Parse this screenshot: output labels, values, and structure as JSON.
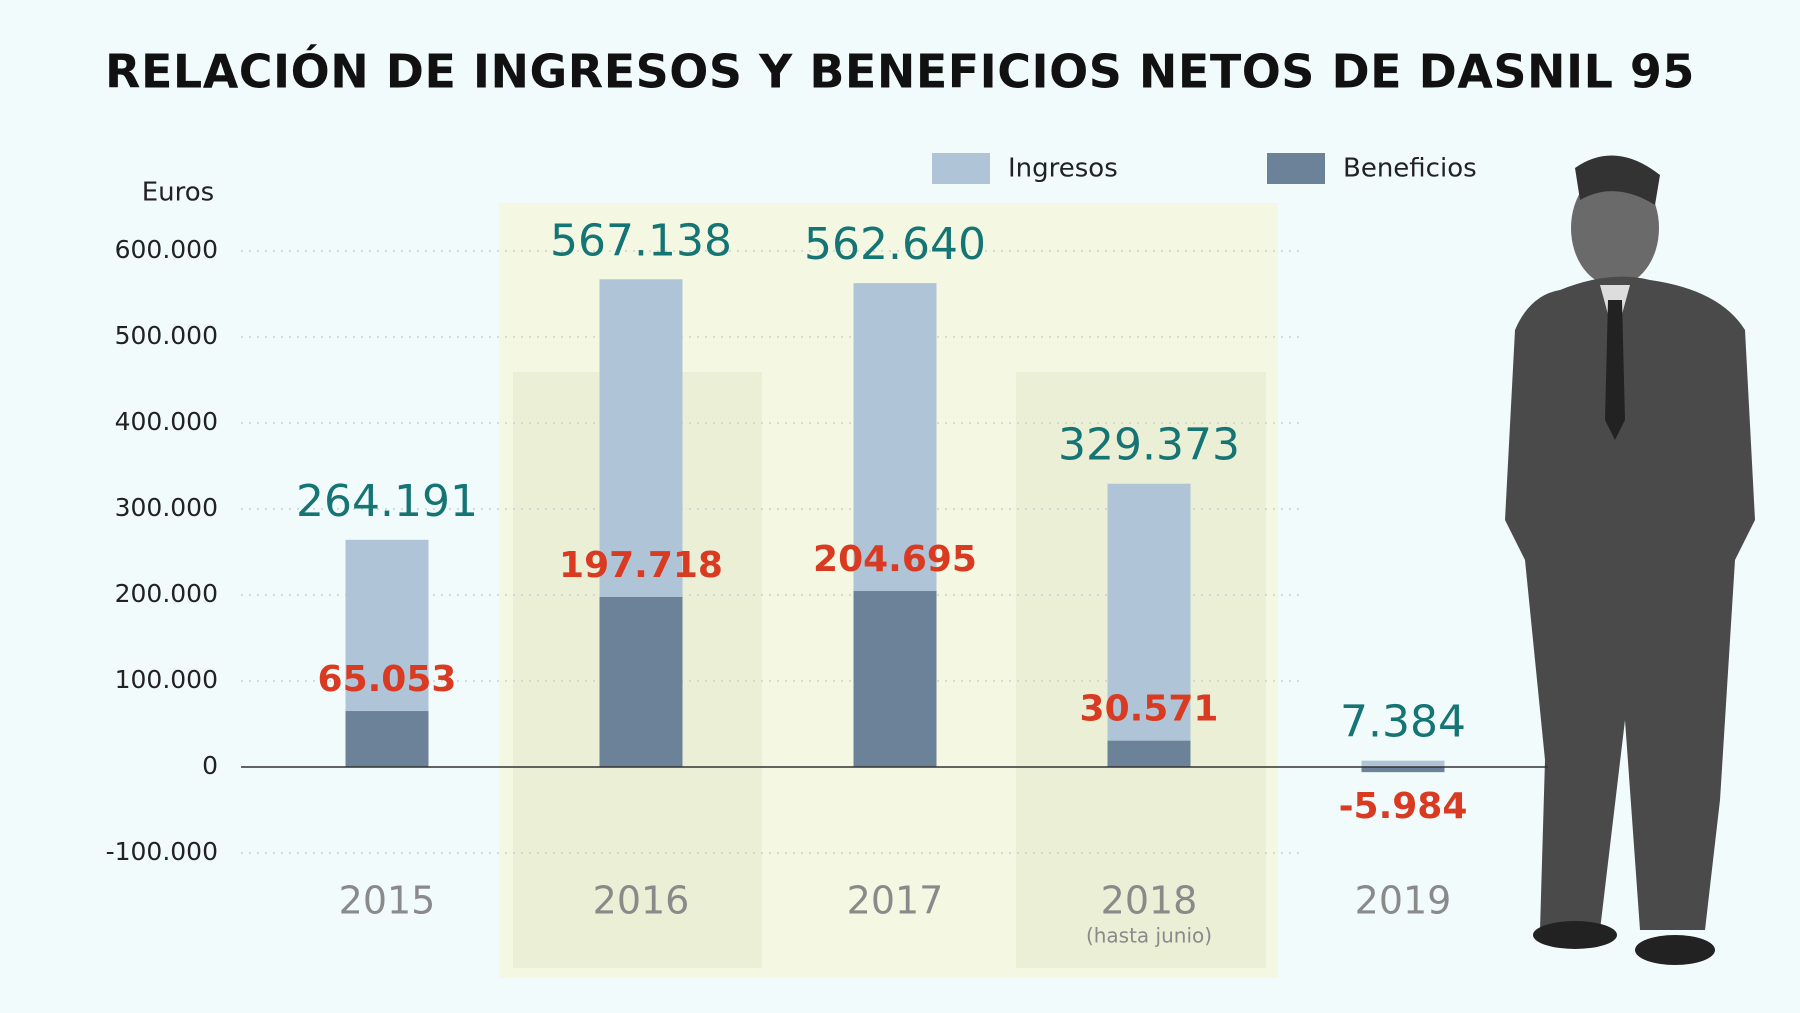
{
  "chart_data": {
    "type": "bar",
    "title": "RELACIÓN DE INGRESOS Y BENEFICIOS NETOS  DE DASNIL 95",
    "y_label": "Euros",
    "categories": [
      "2015",
      "2016",
      "2017",
      "2018",
      "2019"
    ],
    "category_notes": [
      null,
      null,
      null,
      "(hasta junio)",
      null
    ],
    "series": [
      {
        "name": "Ingresos",
        "color": "#b0c4d8",
        "label_color": "#157474",
        "values": [
          264191,
          567138,
          562640,
          329373,
          7384
        ],
        "value_labels": [
          "264.191",
          "567.138",
          "562.640",
          "329.373",
          "7.384"
        ]
      },
      {
        "name": "Beneficios",
        "color": "#6b8299",
        "label_color": "#d93a22",
        "values": [
          65053,
          197718,
          204695,
          30571,
          -5984
        ],
        "value_labels": [
          "65.053",
          "197.718",
          "204.695",
          "30.571",
          "-5.984"
        ]
      }
    ],
    "ylim": [
      -100000,
      600000
    ],
    "yticks": [
      {
        "value": -100000,
        "label": "-100.000"
      },
      0,
      {
        "value": 100000,
        "label": "100.000"
      },
      {
        "value": 200000,
        "label": "200.000"
      },
      {
        "value": 300000,
        "label": "300.000"
      },
      {
        "value": 400000,
        "label": "400.000"
      },
      {
        "value": 500000,
        "label": "500.000"
      },
      {
        "value": 600000,
        "label": "600.000"
      }
    ],
    "grid": true
  }
}
